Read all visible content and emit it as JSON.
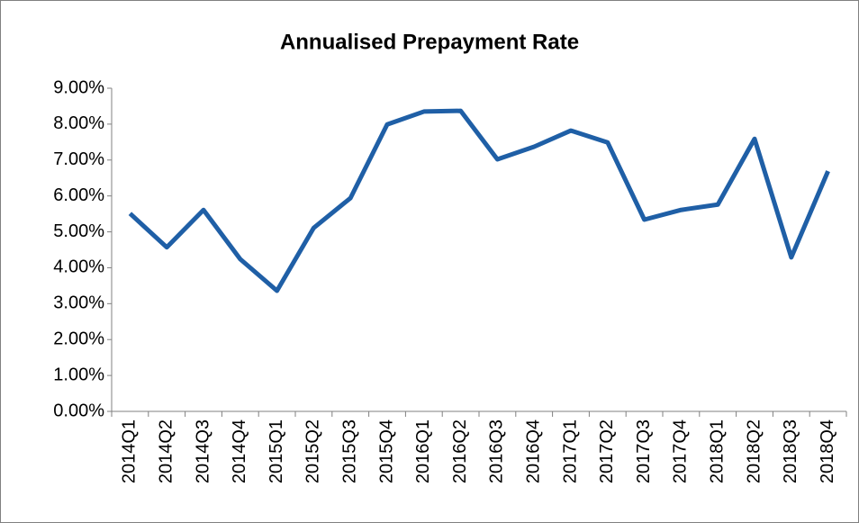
{
  "chart_data": {
    "type": "line",
    "title": "Annualised Prepayment Rate",
    "categories": [
      "2014Q1",
      "2014Q2",
      "2014Q3",
      "2014Q4",
      "2015Q1",
      "2015Q2",
      "2015Q3",
      "2015Q4",
      "2016Q1",
      "2016Q2",
      "2016Q3",
      "2016Q4",
      "2017Q1",
      "2017Q2",
      "2017Q3",
      "2017Q4",
      "2018Q1",
      "2018Q2",
      "2018Q3",
      "2018Q4"
    ],
    "series": [
      {
        "name": "Annualised Prepayment Rate",
        "color": "#1f5fa6",
        "values": [
          5.51,
          4.57,
          5.61,
          4.24,
          3.36,
          5.11,
          5.94,
          7.99,
          8.35,
          8.37,
          7.02,
          7.37,
          7.82,
          7.49,
          5.34,
          5.61,
          5.76,
          7.59,
          4.29,
          6.69
        ]
      }
    ],
    "ylim": [
      0,
      9
    ],
    "yticks": [
      {
        "value": 0,
        "label": "0.00%"
      },
      {
        "value": 1,
        "label": "1.00%"
      },
      {
        "value": 2,
        "label": "2.00%"
      },
      {
        "value": 3,
        "label": "3.00%"
      },
      {
        "value": 4,
        "label": "4.00%"
      },
      {
        "value": 5,
        "label": "5.00%"
      },
      {
        "value": 6,
        "label": "6.00%"
      },
      {
        "value": 7,
        "label": "7.00%"
      },
      {
        "value": 8,
        "label": "8.00%"
      },
      {
        "value": 9,
        "label": "9.00%"
      }
    ],
    "grid": false
  }
}
